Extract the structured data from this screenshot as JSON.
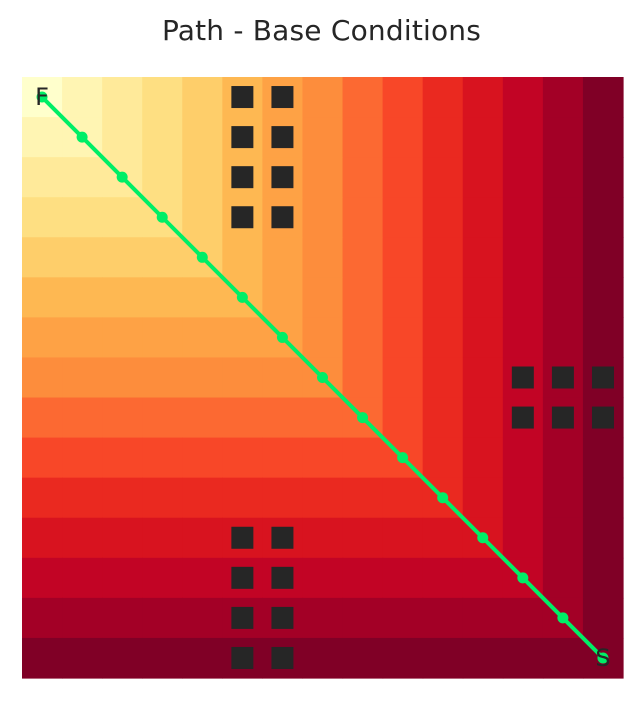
{
  "chart_data": {
    "type": "heatmap",
    "title": "Path - Base Conditions",
    "xlabel": "",
    "ylabel": "",
    "grid_size": 15,
    "grid": false,
    "legend": "none",
    "colormap": "YlOrRd",
    "values_description": "Cell value equals the Chebyshev distance from the top-left corner (0 at top-left, 14 at far edges)",
    "start_label": "S",
    "finish_label": "F",
    "start_cell": [
      14,
      14
    ],
    "finish_cell": [
      0,
      0
    ],
    "obstacles": [
      [
        5,
        0
      ],
      [
        6,
        0
      ],
      [
        5,
        1
      ],
      [
        6,
        1
      ],
      [
        5,
        2
      ],
      [
        6,
        2
      ],
      [
        5,
        3
      ],
      [
        6,
        3
      ],
      [
        12,
        7
      ],
      [
        13,
        7
      ],
      [
        14,
        7
      ],
      [
        12,
        8
      ],
      [
        13,
        8
      ],
      [
        14,
        8
      ],
      [
        5,
        11
      ],
      [
        6,
        11
      ],
      [
        5,
        12
      ],
      [
        6,
        12
      ],
      [
        5,
        13
      ],
      [
        6,
        13
      ],
      [
        5,
        14
      ],
      [
        6,
        14
      ]
    ],
    "path": [
      [
        0,
        0
      ],
      [
        1,
        1
      ],
      [
        2,
        2
      ],
      [
        3,
        3
      ],
      [
        4,
        4
      ],
      [
        5,
        5
      ],
      [
        6,
        6
      ],
      [
        7,
        7
      ],
      [
        8,
        8
      ],
      [
        9,
        9
      ],
      [
        10,
        10
      ],
      [
        11,
        11
      ],
      [
        12,
        12
      ],
      [
        13,
        13
      ],
      [
        14,
        14
      ]
    ],
    "colors": {
      "path": "#00ee66",
      "obstacle": "#262626",
      "label": "#262626"
    }
  }
}
